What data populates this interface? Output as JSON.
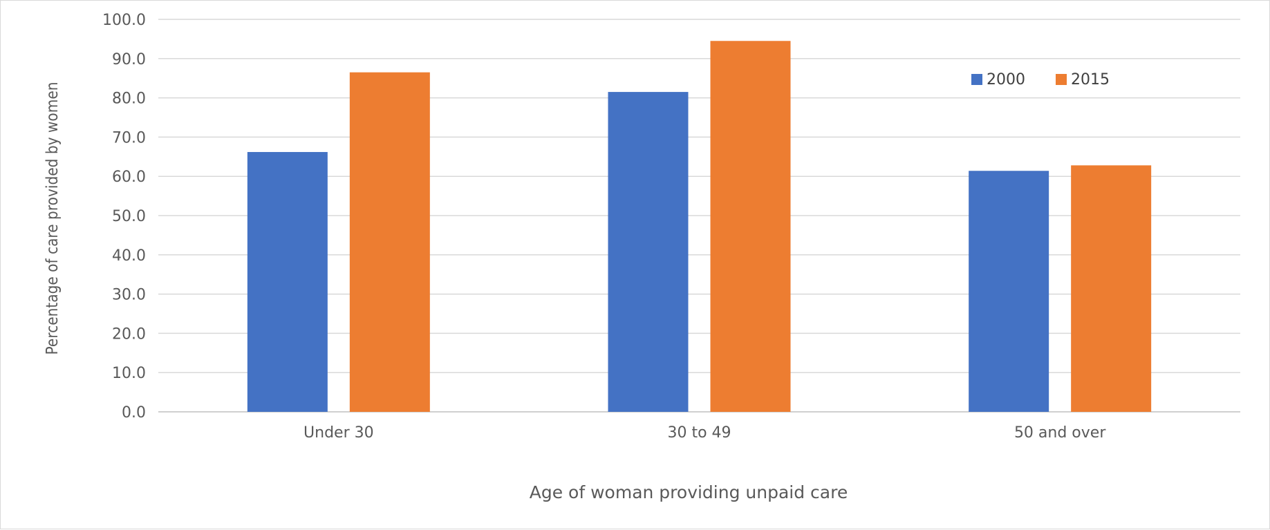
{
  "chart_data": {
    "type": "bar",
    "title": "",
    "xlabel": "Age of woman providing unpaid care",
    "ylabel": "Percentage of care provided by women",
    "categories": [
      "Under 30",
      "30 to 49",
      "50 and over"
    ],
    "series": [
      {
        "name": "2000",
        "color": "#4472C4",
        "values": [
          66.2,
          81.5,
          61.4
        ]
      },
      {
        "name": "2015",
        "color": "#ED7D31",
        "values": [
          86.5,
          94.5,
          62.8
        ]
      }
    ],
    "ylim": [
      0,
      100
    ],
    "yticks": [
      "0.0",
      "10.0",
      "20.0",
      "30.0",
      "40.0",
      "50.0",
      "60.0",
      "70.0",
      "80.0",
      "90.0",
      "100.0"
    ],
    "grid": true,
    "legend_position": "top-right"
  }
}
